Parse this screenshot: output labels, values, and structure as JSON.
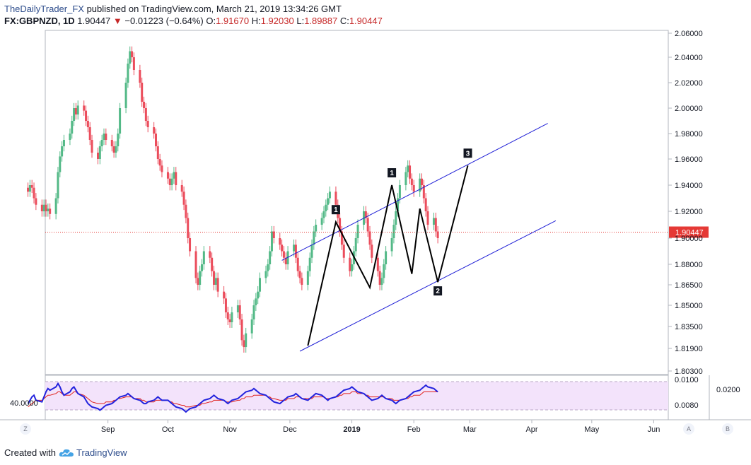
{
  "header": {
    "author": "TheDailyTrader_FX",
    "published_text": "published on TradingView.com, March 21, 2019 13:34:26 GMT"
  },
  "symbol_line": {
    "symbol": "FX:GBPNZD, 1D",
    "last": "1.90447",
    "change": "−0.01223 (−0.64%)",
    "o_label": "O:",
    "o": "1.91670",
    "h_label": "H:",
    "h": "1.92030",
    "l_label": "L:",
    "l": "1.89887",
    "c_label": "C:",
    "c": "1.90447"
  },
  "footer": {
    "created_with": "Created with",
    "brand": "TradingView"
  },
  "corner_buttons": {
    "left": "Z",
    "a": "A",
    "b": "B"
  },
  "colors": {
    "up": "#53b987",
    "down": "#eb4d5c",
    "channel": "#1f1fd6",
    "pattern": "#000000",
    "price_line": "#e53935",
    "rsi_main": "#2222dd",
    "rsi_signal": "#e0201c",
    "rsi_band": "#f3e3fb",
    "axis_text": "#131722"
  },
  "chart_data": {
    "type": "candlestick",
    "title": "FX:GBPNZD, 1D",
    "price_axis_ticks": [
      "2.06000",
      "2.04000",
      "2.02000",
      "2.00000",
      "1.98000",
      "1.96000",
      "1.94000",
      "1.92000",
      "1.90000",
      "1.88000",
      "1.86500",
      "1.85000",
      "1.83500",
      "1.81900",
      "1.80300"
    ],
    "time_axis_labels": [
      "Sep",
      "Oct",
      "Nov",
      "Dec",
      "2019",
      "Feb",
      "Mar",
      "Apr",
      "May",
      "Jun"
    ],
    "bold_time_label": "2019",
    "last_price_label": "1.90447",
    "ohlc_closes": [
      1.935,
      1.94,
      1.938,
      1.93,
      1.925,
      1.92,
      1.925,
      1.92,
      1.922,
      1.918,
      1.93,
      1.95,
      1.962,
      1.97,
      1.975,
      1.98,
      1.99,
      2.0,
      1.995,
      2.002,
      1.998,
      1.99,
      1.985,
      1.975,
      1.965,
      1.96,
      1.97,
      1.975,
      1.98,
      1.975,
      1.97,
      1.965,
      1.97,
      1.98,
      2.0,
      2.02,
      2.035,
      2.045,
      2.04,
      2.03,
      2.02,
      2.005,
      2.0,
      1.99,
      1.985,
      1.98,
      1.97,
      1.96,
      1.955,
      1.95,
      1.945,
      1.94,
      1.945,
      1.95,
      1.94,
      1.935,
      1.925,
      1.915,
      1.9,
      1.89,
      1.87,
      1.865,
      1.875,
      1.88,
      1.89,
      1.885,
      1.875,
      1.865,
      1.87,
      1.86,
      1.855,
      1.845,
      1.84,
      1.838,
      1.845,
      1.85,
      1.84,
      1.825,
      1.82,
      1.83,
      1.84,
      1.85,
      1.855,
      1.86,
      1.87,
      1.875,
      1.88,
      1.89,
      1.905,
      1.9,
      1.895,
      1.89,
      1.885,
      1.88,
      1.89,
      1.895,
      1.885,
      1.875,
      1.87,
      1.865,
      1.875,
      1.885,
      1.895,
      1.905,
      1.91,
      1.915,
      1.92,
      1.925,
      1.93,
      1.935,
      1.925,
      1.915,
      1.905,
      1.895,
      1.885,
      1.875,
      1.88,
      1.89,
      1.9,
      1.91,
      1.92,
      1.915,
      1.905,
      1.895,
      1.885,
      1.875,
      1.865,
      1.87,
      1.88,
      1.89,
      1.9,
      1.91,
      1.92,
      1.93,
      1.94,
      1.95,
      1.955,
      1.945,
      1.94,
      1.935,
      1.945,
      1.94,
      1.93,
      1.92,
      1.91,
      1.915,
      1.905,
      1.9
    ],
    "pattern_points": [
      {
        "date": "2018-12-10",
        "price": 1.821
      },
      {
        "date": "2018-12-24",
        "price": 1.912,
        "label": "1"
      },
      {
        "date": "2019-01-10",
        "price": 1.863
      },
      {
        "date": "2019-01-21",
        "price": 1.94,
        "label": "1"
      },
      {
        "date": "2019-01-31",
        "price": 1.873
      },
      {
        "date": "2019-02-04",
        "price": 1.922
      },
      {
        "date": "2019-02-13",
        "price": 1.867,
        "label": "2"
      },
      {
        "date": "2019-02-28",
        "price": 1.955,
        "label": "3"
      }
    ],
    "channel_upper": [
      {
        "date": "2018-11-27",
        "price": 1.883
      },
      {
        "date": "2019-04-09",
        "price": 1.988
      }
    ],
    "channel_lower": [
      {
        "date": "2018-12-06",
        "price": 1.817
      },
      {
        "date": "2019-04-13",
        "price": 1.913
      }
    ],
    "rsi_panel": {
      "left_axis_label": "40.0000",
      "right_axis_ticks": [
        "0.0100",
        "0.0080"
      ],
      "far_right_tick": "0.0200",
      "rsi_series": [
        48,
        50,
        52,
        53,
        50,
        49,
        52,
        55,
        57,
        56,
        58,
        60,
        58,
        55,
        53,
        55,
        57,
        58,
        56,
        54,
        52,
        50,
        48,
        47,
        46,
        45,
        44,
        45,
        46,
        47,
        48,
        49,
        50,
        51,
        52,
        53,
        54,
        53,
        52,
        51,
        50,
        49,
        48,
        48,
        49,
        50,
        51,
        52,
        51,
        50,
        50,
        49,
        48,
        47,
        46,
        45,
        44,
        43,
        44,
        45,
        46,
        47,
        48,
        49,
        50,
        51,
        52,
        53,
        52,
        51,
        50,
        49,
        48,
        49,
        50,
        51,
        52,
        53,
        54,
        55,
        56,
        57,
        56,
        55,
        54,
        53,
        52,
        51,
        50,
        49,
        48,
        49,
        50,
        51,
        52,
        53,
        54,
        53,
        52,
        51,
        50,
        51,
        52,
        53,
        54,
        53,
        52,
        51,
        50,
        51,
        52,
        53,
        54,
        55,
        56,
        57,
        58,
        57,
        56,
        55,
        54,
        53,
        52,
        51,
        50,
        51,
        52,
        53,
        52,
        51,
        50,
        49,
        48,
        49,
        50,
        51,
        52,
        53,
        54,
        55,
        56,
        57,
        58,
        59,
        58,
        57,
        56,
        55,
        56,
        57,
        58
      ],
      "signal_series": [
        46,
        47,
        48,
        49,
        50,
        50,
        51,
        52,
        53,
        53,
        54,
        55,
        55,
        54,
        53,
        53,
        54,
        55,
        55,
        54,
        53,
        52,
        51,
        50,
        49,
        48,
        48,
        48,
        48,
        49,
        49,
        50,
        50,
        51,
        51,
        52,
        52,
        52,
        52,
        51,
        51,
        50,
        50,
        49,
        49,
        49,
        50,
        50,
        50,
        50,
        50,
        49,
        49,
        48,
        48,
        47,
        47,
        46,
        46,
        46,
        47,
        47,
        47,
        48,
        48,
        49,
        49,
        50,
        50,
        50,
        50,
        49,
        49,
        49,
        49,
        50,
        50,
        51,
        51,
        52,
        52,
        53,
        53,
        53,
        53,
        53,
        52,
        52,
        51,
        51,
        50,
        50,
        50,
        50,
        51,
        51,
        52,
        52,
        52,
        51,
        51,
        51,
        51,
        52,
        52,
        52,
        52,
        51,
        51,
        51,
        52,
        52,
        53,
        53,
        54,
        54,
        55,
        55,
        55,
        54,
        54,
        53,
        53,
        52,
        52,
        52,
        52,
        52,
        52,
        51,
        51,
        50,
        50,
        50,
        50,
        51,
        51,
        52,
        52,
        53,
        53,
        54,
        55,
        55,
        55,
        55,
        55,
        55,
        55,
        55,
        55
      ]
    }
  }
}
